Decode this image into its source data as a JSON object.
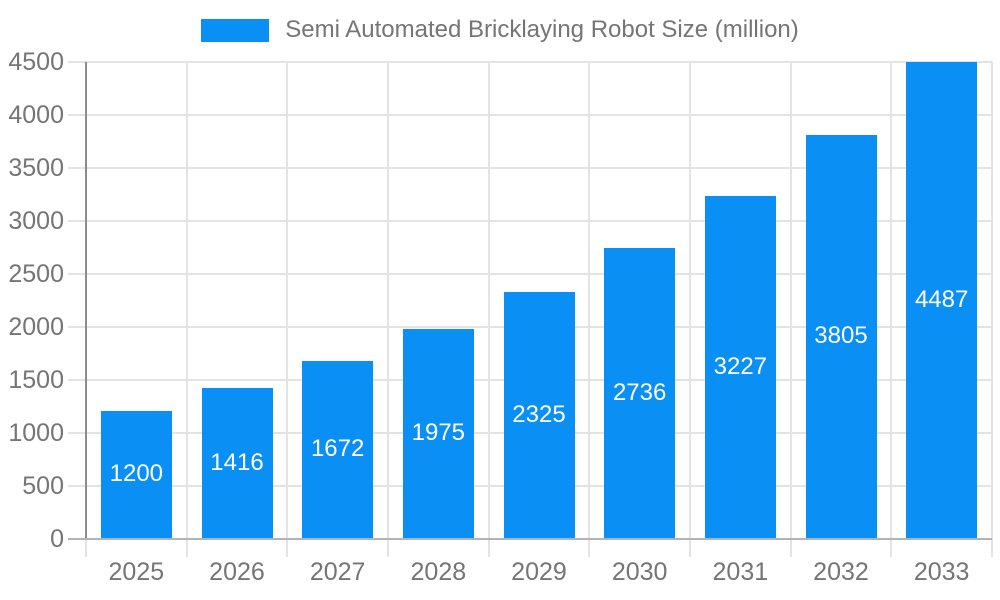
{
  "chart_data": {
    "type": "bar",
    "title": "Semi Automated Bricklaying Robot Size (million)",
    "categories": [
      "2025",
      "2026",
      "2027",
      "2028",
      "2029",
      "2030",
      "2031",
      "2032",
      "2033"
    ],
    "values": [
      1200,
      1416,
      1672,
      1975,
      2325,
      2736,
      3227,
      3805,
      4487
    ],
    "series": [
      {
        "name": "Semi Automated Bricklaying Robot Size (million)",
        "values": [
          1200,
          1416,
          1672,
          1975,
          2325,
          2736,
          3227,
          3805,
          4487
        ]
      }
    ],
    "xlabel": "",
    "ylabel": "",
    "ylim": [
      0,
      4500
    ],
    "ytick_step": 500,
    "yticks": [
      0,
      500,
      1000,
      1500,
      2000,
      2500,
      3000,
      3500,
      4000,
      4500
    ],
    "grid": true,
    "legend_position": "top",
    "value_labels": "inside-center"
  },
  "colors": {
    "bar": "#0a8ff5",
    "bar_label": "#ffffff",
    "axis_text": "#757575",
    "title_text": "#757575",
    "gridline": "#e3e3e3",
    "y_axis_line": "#8c8c8c",
    "baseline": "#b3b3b3",
    "background": "#ffffff"
  }
}
